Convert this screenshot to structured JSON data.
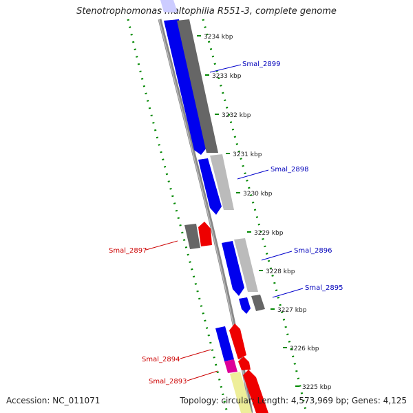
{
  "title": "Stenotrophomonas maltophilia R551-3, complete genome",
  "footer": {
    "accession": "Accession: NC_011071",
    "summary": "Topology: circular; Length: 4,573,969 bp; Genes: 4,125"
  },
  "colors": {
    "forward": "#0000ee",
    "reverse": "#ee0000",
    "label_forward": "#0000bb",
    "label_reverse": "#cc0000",
    "tick": "#008800",
    "backbone": "#888888"
  },
  "ticks": [
    "3234 kbp",
    "3233 kbp",
    "3232 kbp",
    "3231 kbp",
    "3230 kbp",
    "3229 kbp",
    "3228 kbp",
    "3227 kbp",
    "3226 kbp",
    "3225 kbp"
  ],
  "gene_labels": [
    "Smal_2899",
    "Smal_2898",
    "Smal_2897",
    "Smal_2896",
    "Smal_2895",
    "Smal_2894",
    "Smal_2893"
  ]
}
